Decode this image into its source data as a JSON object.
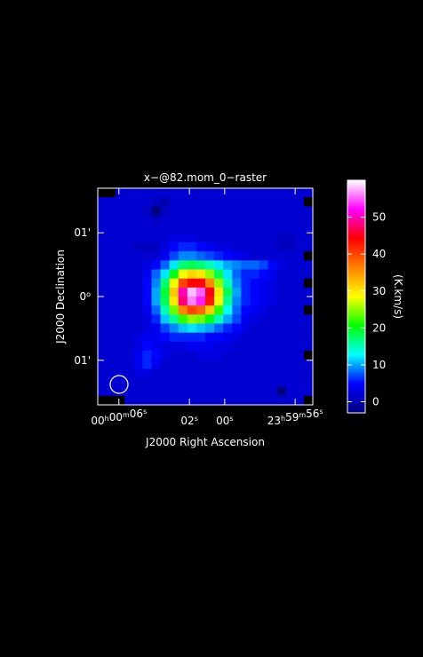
{
  "chart_data": {
    "type": "heatmap",
    "title": "x−@82.mom_0−raster",
    "xlabel": "J2000 Right Ascension",
    "ylabel": "J2000 Declination",
    "x_ticks": [
      {
        "label": "00h00m06s",
        "ra_s": 6,
        "parts": [
          {
            "t": "00"
          },
          {
            "t": "h",
            "sup": true
          },
          {
            "t": "00"
          },
          {
            "t": "m",
            "sup": true
          },
          {
            "t": "06"
          },
          {
            "t": "s",
            "sup": true
          }
        ]
      },
      {
        "label": "02s",
        "ra_s": 2,
        "parts": [
          {
            "t": "02"
          },
          {
            "t": "s",
            "sup": true
          }
        ]
      },
      {
        "label": "00s",
        "ra_s": 0,
        "parts": [
          {
            "t": "00"
          },
          {
            "t": "s",
            "sup": true
          }
        ]
      },
      {
        "label": "23h59m56s",
        "ra_s": -4,
        "parts": [
          {
            "t": "23"
          },
          {
            "t": "h",
            "sup": true
          },
          {
            "t": "59"
          },
          {
            "t": "m",
            "sup": true
          },
          {
            "t": "56"
          },
          {
            "t": "s",
            "sup": true
          }
        ]
      }
    ],
    "y_ticks": [
      {
        "label": "01'",
        "dec_arcmin": 1,
        "parts": [
          {
            "t": "01'"
          }
        ]
      },
      {
        "label": "0°",
        "dec_arcmin": 0,
        "parts": [
          {
            "t": "0"
          },
          {
            "t": "o",
            "sup": true
          }
        ]
      },
      {
        "label": "01'",
        "dec_arcmin": -1,
        "parts": [
          {
            "t": "01'"
          }
        ]
      }
    ],
    "x_range_ra_s": [
      7.2,
      -5.0
    ],
    "y_range_dec_arcmin": [
      1.7,
      -1.7
    ],
    "colorbar": {
      "label": "(K.km/s)",
      "min": -3,
      "max": 60,
      "ticks": [
        0,
        10,
        20,
        30,
        40,
        50
      ],
      "tick_labels": [
        "0",
        "10",
        "20",
        "30",
        "40",
        "50"
      ],
      "colors": [
        "#000080",
        "#0000ff",
        "#00ffff",
        "#00ff00",
        "#ffff00",
        "#ff8000",
        "#ff0000",
        "#ff00ff",
        "#ffffff"
      ]
    },
    "grid": false,
    "beam": "circle, lower-left",
    "map": {
      "nx": 24,
      "ny": 24,
      "values": [
        [
          null,
          null,
          2,
          2,
          2,
          2,
          2,
          2,
          2,
          2,
          2,
          2,
          2,
          2,
          2,
          2,
          2,
          2,
          2,
          2,
          2,
          2,
          2,
          2
        ],
        [
          2,
          2,
          2,
          2,
          2,
          2,
          1,
          0,
          2,
          2,
          2,
          2,
          2,
          2,
          2,
          2,
          2,
          2,
          2,
          2,
          2,
          2,
          2,
          null
        ],
        [
          2,
          2,
          2,
          2,
          2,
          1,
          -3,
          1,
          2,
          2,
          2,
          2,
          2,
          2,
          2,
          2,
          2,
          2,
          2,
          2,
          2,
          2,
          2,
          2
        ],
        [
          2,
          2,
          2,
          2,
          2,
          2,
          1,
          2,
          2,
          2,
          2,
          2,
          2,
          2,
          2,
          2,
          2,
          2,
          2,
          2,
          2,
          2,
          2,
          2
        ],
        [
          2,
          2,
          2,
          2,
          2,
          2,
          2,
          2,
          2,
          2,
          2,
          2,
          2,
          2,
          2,
          2,
          2,
          2,
          2,
          2,
          2,
          2,
          2,
          2
        ],
        [
          2,
          2,
          2,
          2,
          2,
          2,
          2,
          2,
          3,
          3,
          3,
          2,
          2,
          2,
          2,
          2,
          2,
          2,
          2,
          2,
          1,
          1,
          2,
          2
        ],
        [
          2,
          2,
          2,
          2,
          1,
          1,
          1,
          3,
          5,
          6,
          6,
          5,
          4,
          3,
          3,
          2,
          2,
          2,
          2,
          2,
          1,
          1,
          2,
          2
        ],
        [
          2,
          2,
          2,
          2,
          2,
          2,
          2,
          4,
          7,
          9,
          9,
          8,
          7,
          6,
          5,
          4,
          3,
          2,
          2,
          2,
          2,
          2,
          2,
          null
        ],
        [
          2,
          2,
          2,
          2,
          2,
          3,
          5,
          8,
          12,
          17,
          18,
          17,
          15,
          12,
          10,
          9,
          8,
          8,
          7,
          5,
          3,
          2,
          2,
          2
        ],
        [
          2,
          2,
          2,
          2,
          2,
          4,
          8,
          12,
          20,
          28,
          31,
          30,
          25,
          18,
          12,
          8,
          6,
          6,
          5,
          4,
          2,
          2,
          2,
          2
        ],
        [
          2,
          2,
          2,
          2,
          2,
          5,
          9,
          17,
          28,
          40,
          44,
          44,
          36,
          25,
          15,
          9,
          6,
          5,
          4,
          3,
          2,
          2,
          2,
          null
        ],
        [
          2,
          2,
          2,
          2,
          2,
          5,
          10,
          19,
          32,
          50,
          58,
          55,
          45,
          30,
          18,
          10,
          6,
          5,
          4,
          3,
          2,
          2,
          2,
          2
        ],
        [
          2,
          2,
          2,
          2,
          2,
          5,
          10,
          18,
          30,
          48,
          56,
          53,
          43,
          28,
          16,
          9,
          6,
          5,
          4,
          3,
          2,
          2,
          2,
          2
        ],
        [
          2,
          2,
          2,
          2,
          2,
          4,
          8,
          15,
          24,
          36,
          40,
          38,
          32,
          22,
          13,
          8,
          5,
          4,
          3,
          2,
          2,
          2,
          2,
          null
        ],
        [
          2,
          2,
          2,
          2,
          2,
          3,
          6,
          11,
          16,
          22,
          25,
          24,
          20,
          15,
          10,
          7,
          4,
          3,
          2,
          2,
          2,
          2,
          2,
          2
        ],
        [
          2,
          2,
          2,
          2,
          2,
          3,
          4,
          7,
          9,
          11,
          12,
          11,
          10,
          8,
          6,
          5,
          3,
          2,
          2,
          2,
          2,
          2,
          2,
          2
        ],
        [
          2,
          2,
          2,
          2,
          3,
          4,
          4,
          5,
          6,
          6,
          6,
          6,
          5,
          5,
          4,
          3,
          2,
          2,
          2,
          2,
          2,
          2,
          2,
          2
        ],
        [
          2,
          2,
          2,
          2,
          3,
          5,
          4,
          3,
          3,
          3,
          4,
          4,
          4,
          3,
          3,
          2,
          2,
          2,
          2,
          2,
          2,
          2,
          2,
          2
        ],
        [
          2,
          2,
          2,
          2,
          4,
          6,
          5,
          3,
          2,
          2,
          2,
          3,
          3,
          3,
          2,
          2,
          2,
          2,
          2,
          2,
          2,
          2,
          2,
          null
        ],
        [
          2,
          2,
          2,
          2,
          4,
          6,
          4,
          2,
          2,
          2,
          2,
          2,
          2,
          2,
          2,
          2,
          2,
          2,
          2,
          2,
          2,
          2,
          2,
          2
        ],
        [
          2,
          2,
          2,
          2,
          3,
          3,
          2,
          2,
          2,
          2,
          2,
          2,
          2,
          2,
          2,
          2,
          2,
          2,
          2,
          2,
          2,
          2,
          2,
          2
        ],
        [
          2,
          2,
          2,
          2,
          2,
          2,
          2,
          2,
          2,
          2,
          2,
          2,
          2,
          2,
          2,
          2,
          2,
          2,
          2,
          2,
          2,
          2,
          2,
          2
        ],
        [
          2,
          2,
          2,
          2,
          2,
          2,
          2,
          2,
          2,
          2,
          2,
          2,
          2,
          2,
          2,
          2,
          2,
          2,
          2,
          2,
          -3,
          2,
          2,
          2
        ],
        [
          null,
          null,
          null,
          2,
          2,
          2,
          2,
          2,
          2,
          2,
          2,
          2,
          2,
          2,
          2,
          2,
          2,
          2,
          2,
          2,
          2,
          2,
          2,
          null
        ]
      ]
    }
  }
}
